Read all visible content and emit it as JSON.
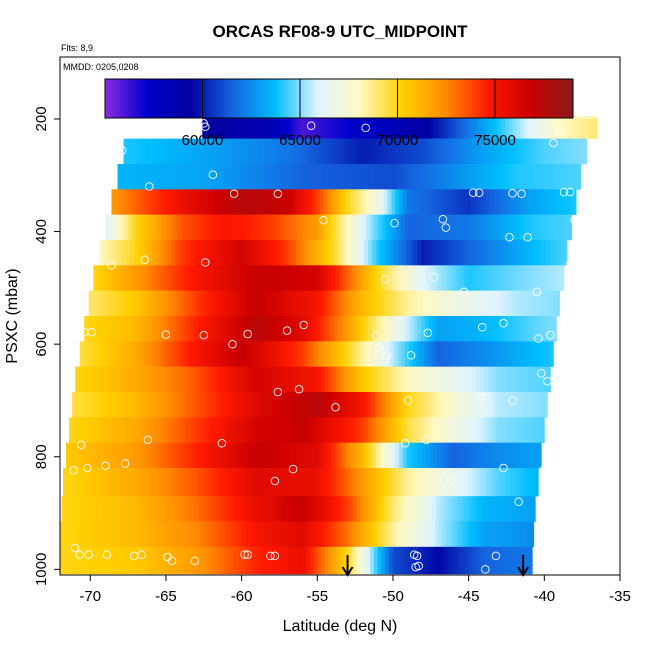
{
  "chart_data": {
    "type": "heatmap",
    "title": "ORCAS RF08-9 UTC_MIDPOINT",
    "flights_note": "Flts: 8,9",
    "dates_note": "MMDD: 0205,0208",
    "xlabel": "Latitude (deg N)",
    "ylabel": "PSXC (mbar)",
    "xlim": [
      -72,
      -35
    ],
    "ylim": [
      1010,
      90
    ],
    "x_ticks": [
      -70,
      -65,
      -60,
      -55,
      -50,
      -45,
      -40,
      -35
    ],
    "y_ticks": [
      200,
      400,
      600,
      800,
      1000
    ],
    "colorbar": {
      "range": [
        55000,
        79000
      ],
      "ticks": [
        60000,
        65000,
        70000,
        75000
      ],
      "colors": [
        "#8a2be2",
        "#0000cd",
        "#0000a0",
        "#1565e0",
        "#00bfff",
        "#e0f4ff",
        "#fff8c0",
        "#ffd000",
        "#ff8c00",
        "#ff1a00",
        "#cc0000",
        "#8b1a1a"
      ]
    },
    "bands": [
      {
        "p_top": 195,
        "p_bot": 235,
        "lat_start": -62.6,
        "lat_end": -36.5,
        "stops": [
          [
            -62.6,
            59500
          ],
          [
            -58,
            58500
          ],
          [
            -56,
            56000
          ],
          [
            -52,
            57500
          ],
          [
            -48,
            59000
          ],
          [
            -45,
            62000
          ],
          [
            -42,
            65000
          ],
          [
            -39,
            68000
          ],
          [
            -36.5,
            69000
          ]
        ]
      },
      {
        "p_top": 235,
        "p_bot": 280,
        "lat_start": -67.8,
        "lat_end": -37.2,
        "stops": [
          [
            -67.8,
            64000
          ],
          [
            -62,
            63000
          ],
          [
            -57,
            62000
          ],
          [
            -52,
            60000
          ],
          [
            -48,
            61000
          ],
          [
            -44,
            63000
          ],
          [
            -40,
            64500
          ],
          [
            -37.2,
            65000
          ]
        ]
      },
      {
        "p_top": 280,
        "p_bot": 325,
        "lat_start": -68.2,
        "lat_end": -37.6,
        "stops": [
          [
            -68.2,
            63500
          ],
          [
            -62,
            63000
          ],
          [
            -56,
            61500
          ],
          [
            -50,
            61000
          ],
          [
            -46,
            62500
          ],
          [
            -42,
            64000
          ],
          [
            -37.6,
            64500
          ]
        ]
      },
      {
        "p_top": 325,
        "p_bot": 370,
        "lat_start": -68.6,
        "lat_end": -37.9,
        "stops": [
          [
            -68.6,
            72000
          ],
          [
            -66,
            74000
          ],
          [
            -63,
            76000
          ],
          [
            -60,
            77500
          ],
          [
            -57,
            77000
          ],
          [
            -55,
            74000
          ],
          [
            -53,
            70000
          ],
          [
            -51,
            67000
          ],
          [
            -49,
            62000
          ],
          [
            -45,
            60500
          ],
          [
            -41,
            63000
          ],
          [
            -37.9,
            64000
          ]
        ]
      },
      {
        "p_top": 370,
        "p_bot": 415,
        "lat_start": -69.0,
        "lat_end": -38.2,
        "stops": [
          [
            -69.0,
            66000
          ],
          [
            -67,
            70000
          ],
          [
            -64,
            73500
          ],
          [
            -61,
            75000
          ],
          [
            -58,
            74000
          ],
          [
            -55,
            72000
          ],
          [
            -52,
            66000
          ],
          [
            -49,
            61500
          ],
          [
            -45,
            62000
          ],
          [
            -41,
            64000
          ],
          [
            -38.2,
            64500
          ]
        ]
      },
      {
        "p_top": 415,
        "p_bot": 460,
        "lat_start": -69.4,
        "lat_end": -38.5,
        "stops": [
          [
            -69.4,
            68000
          ],
          [
            -67,
            70000
          ],
          [
            -64,
            74000
          ],
          [
            -60,
            76500
          ],
          [
            -57,
            74000
          ],
          [
            -54,
            70000
          ],
          [
            -51,
            64000
          ],
          [
            -48,
            60000
          ],
          [
            -45,
            61500
          ],
          [
            -41,
            63500
          ],
          [
            -38.5,
            64500
          ]
        ]
      },
      {
        "p_top": 460,
        "p_bot": 505,
        "lat_start": -69.8,
        "lat_end": -38.7,
        "stops": [
          [
            -69.8,
            70000
          ],
          [
            -67,
            72000
          ],
          [
            -63,
            75000
          ],
          [
            -59,
            77000
          ],
          [
            -55,
            76500
          ],
          [
            -51,
            70000
          ],
          [
            -48,
            66000
          ],
          [
            -45,
            64000
          ],
          [
            -41,
            65000
          ],
          [
            -38.7,
            65500
          ]
        ]
      },
      {
        "p_top": 505,
        "p_bot": 550,
        "lat_start": -70.1,
        "lat_end": -39.0,
        "stops": [
          [
            -70.1,
            69000
          ],
          [
            -67,
            70500
          ],
          [
            -63,
            74000
          ],
          [
            -59,
            77000
          ],
          [
            -55,
            75000
          ],
          [
            -52,
            71000
          ],
          [
            -49,
            68500
          ],
          [
            -46,
            67000
          ],
          [
            -42,
            65500
          ],
          [
            -39.0,
            65000
          ]
        ]
      },
      {
        "p_top": 550,
        "p_bot": 595,
        "lat_start": -70.4,
        "lat_end": -39.2,
        "stops": [
          [
            -70.4,
            70000
          ],
          [
            -67,
            71000
          ],
          [
            -63,
            74500
          ],
          [
            -59,
            77500
          ],
          [
            -56,
            76000
          ],
          [
            -53,
            72000
          ],
          [
            -50,
            67000
          ],
          [
            -47,
            63000
          ],
          [
            -44,
            63500
          ],
          [
            -41,
            64500
          ],
          [
            -39.2,
            65000
          ]
        ]
      },
      {
        "p_top": 595,
        "p_bot": 640,
        "lat_start": -70.7,
        "lat_end": -39.4,
        "stops": [
          [
            -70.7,
            69500
          ],
          [
            -67,
            71500
          ],
          [
            -63,
            75000
          ],
          [
            -60,
            77000
          ],
          [
            -56,
            74000
          ],
          [
            -53,
            70000
          ],
          [
            -50,
            65500
          ],
          [
            -47,
            61500
          ],
          [
            -44,
            62500
          ],
          [
            -41,
            63500
          ],
          [
            -39.4,
            64000
          ]
        ]
      },
      {
        "p_top": 640,
        "p_bot": 685,
        "lat_start": -71.0,
        "lat_end": -39.6,
        "stops": [
          [
            -71.0,
            70000
          ],
          [
            -67,
            71500
          ],
          [
            -63,
            73500
          ],
          [
            -59,
            76500
          ],
          [
            -55,
            75000
          ],
          [
            -52,
            70500
          ],
          [
            -49,
            68000
          ],
          [
            -46,
            66500
          ],
          [
            -43,
            65000
          ],
          [
            -39.6,
            64500
          ]
        ]
      },
      {
        "p_top": 685,
        "p_bot": 730,
        "lat_start": -71.2,
        "lat_end": -39.8,
        "stops": [
          [
            -71.2,
            69500
          ],
          [
            -67,
            71000
          ],
          [
            -63,
            73500
          ],
          [
            -59,
            76000
          ],
          [
            -55,
            77500
          ],
          [
            -52,
            75000
          ],
          [
            -49,
            70000
          ],
          [
            -46,
            67500
          ],
          [
            -43,
            65500
          ],
          [
            -39.8,
            65000
          ]
        ]
      },
      {
        "p_top": 730,
        "p_bot": 775,
        "lat_start": -71.4,
        "lat_end": -40.0,
        "stops": [
          [
            -71.4,
            70000
          ],
          [
            -67,
            71500
          ],
          [
            -63,
            74000
          ],
          [
            -59,
            76500
          ],
          [
            -56,
            77000
          ],
          [
            -52,
            74000
          ],
          [
            -49,
            69500
          ],
          [
            -46,
            67000
          ],
          [
            -43,
            65000
          ],
          [
            -40.0,
            64500
          ]
        ]
      },
      {
        "p_top": 775,
        "p_bot": 820,
        "lat_start": -71.6,
        "lat_end": -40.2,
        "stops": [
          [
            -71.6,
            70500
          ],
          [
            -67,
            72000
          ],
          [
            -63,
            74500
          ],
          [
            -59,
            77000
          ],
          [
            -55,
            76000
          ],
          [
            -52,
            71000
          ],
          [
            -49,
            64000
          ],
          [
            -46,
            61500
          ],
          [
            -43,
            62500
          ],
          [
            -40.2,
            63000
          ]
        ]
      },
      {
        "p_top": 820,
        "p_bot": 870,
        "lat_start": -71.8,
        "lat_end": -40.4,
        "stops": [
          [
            -71.8,
            70000
          ],
          [
            -67,
            71500
          ],
          [
            -63,
            73500
          ],
          [
            -59,
            76000
          ],
          [
            -55,
            75500
          ],
          [
            -52,
            72000
          ],
          [
            -49,
            68500
          ],
          [
            -46,
            66500
          ],
          [
            -43,
            64500
          ],
          [
            -40.4,
            63500
          ]
        ]
      },
      {
        "p_top": 870,
        "p_bot": 915,
        "lat_start": -71.9,
        "lat_end": -40.6,
        "stops": [
          [
            -71.9,
            70000
          ],
          [
            -67,
            71000
          ],
          [
            -63,
            73000
          ],
          [
            -59,
            75500
          ],
          [
            -56,
            77000
          ],
          [
            -53,
            74000
          ],
          [
            -50,
            69000
          ],
          [
            -47,
            65500
          ],
          [
            -44,
            63500
          ],
          [
            -40.6,
            63000
          ]
        ]
      },
      {
        "p_top": 915,
        "p_bot": 960,
        "lat_start": -72.0,
        "lat_end": -40.7,
        "stops": [
          [
            -72.0,
            70000
          ],
          [
            -67,
            71000
          ],
          [
            -63,
            72500
          ],
          [
            -59,
            75000
          ],
          [
            -56,
            76000
          ],
          [
            -53,
            73000
          ],
          [
            -50,
            68500
          ],
          [
            -47,
            65500
          ],
          [
            -44,
            63000
          ],
          [
            -40.7,
            62500
          ]
        ]
      },
      {
        "p_top": 960,
        "p_bot": 1008,
        "lat_start": -72.0,
        "lat_end": -40.8,
        "stops": [
          [
            -72.0,
            70000
          ],
          [
            -67,
            70500
          ],
          [
            -63,
            72000
          ],
          [
            -59,
            74500
          ],
          [
            -56,
            75500
          ],
          [
            -53,
            70000
          ],
          [
            -50,
            61000
          ],
          [
            -47,
            59500
          ],
          [
            -44,
            61500
          ],
          [
            -40.8,
            62000
          ]
        ]
      }
    ],
    "points": [
      [
        -62.6,
        192
      ],
      [
        -62.5,
        208
      ],
      [
        -62.4,
        214
      ],
      [
        -58.2,
        190
      ],
      [
        -55.4,
        212
      ],
      [
        -52.4,
        190
      ],
      [
        -51.8,
        216
      ],
      [
        -39.2,
        192
      ],
      [
        -38.8,
        192
      ],
      [
        -38.4,
        192
      ],
      [
        -38.0,
        192
      ],
      [
        -37.6,
        192
      ],
      [
        -37.2,
        192
      ],
      [
        -36.8,
        192
      ],
      [
        -36.4,
        192
      ],
      [
        -36.0,
        192
      ],
      [
        -35.6,
        192
      ],
      [
        -39.0,
        222
      ],
      [
        -39.4,
        243
      ],
      [
        -67.7,
        218
      ],
      [
        -67.9,
        256
      ],
      [
        -61.9,
        299
      ],
      [
        -60.5,
        333
      ],
      [
        -66.1,
        320
      ],
      [
        -57.6,
        333
      ],
      [
        -38.7,
        330
      ],
      [
        -38.3,
        330
      ],
      [
        -44.7,
        331
      ],
      [
        -44.3,
        331
      ],
      [
        -42.1,
        332
      ],
      [
        -41.5,
        333
      ],
      [
        -68.9,
        362
      ],
      [
        -54.6,
        380
      ],
      [
        -49.9,
        385
      ],
      [
        -46.7,
        378
      ],
      [
        -46.5,
        393
      ],
      [
        -42.3,
        410
      ],
      [
        -41.1,
        410
      ],
      [
        -38.0,
        380
      ],
      [
        -62.4,
        455
      ],
      [
        -66.4,
        450
      ],
      [
        -68.6,
        460
      ],
      [
        -47.3,
        481
      ],
      [
        -38.3,
        459
      ],
      [
        -50.5,
        485
      ],
      [
        -45.3,
        507
      ],
      [
        -40.5,
        507
      ],
      [
        -69.9,
        579
      ],
      [
        -70.4,
        579
      ],
      [
        -65.0,
        583
      ],
      [
        -62.5,
        584
      ],
      [
        -59.6,
        582
      ],
      [
        -57.0,
        576
      ],
      [
        -55.9,
        566
      ],
      [
        -47.7,
        580
      ],
      [
        -51.1,
        585
      ],
      [
        -50.9,
        606
      ],
      [
        -50.4,
        620
      ],
      [
        -48.8,
        620
      ],
      [
        -44.1,
        570
      ],
      [
        -42.7,
        563
      ],
      [
        -40.4,
        590
      ],
      [
        -39.6,
        584
      ],
      [
        -38.6,
        576
      ],
      [
        -60.6,
        600
      ],
      [
        -57.6,
        685
      ],
      [
        -56.2,
        680
      ],
      [
        -53.8,
        712
      ],
      [
        -49.0,
        700
      ],
      [
        -44.2,
        695
      ],
      [
        -42.1,
        700
      ],
      [
        -39.8,
        666
      ],
      [
        -40.2,
        652
      ],
      [
        -66.2,
        770
      ],
      [
        -61.3,
        776
      ],
      [
        -70.6,
        779
      ],
      [
        -67.7,
        812
      ],
      [
        -69.0,
        816
      ],
      [
        -70.2,
        820
      ],
      [
        -71.1,
        824
      ],
      [
        -47.8,
        770
      ],
      [
        -49.2,
        776
      ],
      [
        -42.7,
        820
      ],
      [
        -40.0,
        822
      ],
      [
        -56.6,
        822
      ],
      [
        -57.8,
        843
      ],
      [
        -46.2,
        843
      ],
      [
        -41.7,
        880
      ],
      [
        -43.2,
        976
      ],
      [
        -43.9,
        1000
      ],
      [
        -71.0,
        962
      ],
      [
        -70.7,
        974
      ],
      [
        -70.1,
        974
      ],
      [
        -68.9,
        974
      ],
      [
        -67.1,
        976
      ],
      [
        -66.6,
        974
      ],
      [
        -64.9,
        978
      ],
      [
        -64.6,
        985
      ],
      [
        -63.1,
        985
      ],
      [
        -59.8,
        974
      ],
      [
        -59.6,
        974
      ],
      [
        -58.1,
        976
      ],
      [
        -57.8,
        976
      ],
      [
        -48.6,
        974
      ],
      [
        -48.4,
        976
      ],
      [
        -48.3,
        994
      ],
      [
        -48.5,
        996
      ],
      [
        -40.1,
        1005
      ]
    ],
    "arrows": [
      -53.0,
      -41.4
    ]
  }
}
